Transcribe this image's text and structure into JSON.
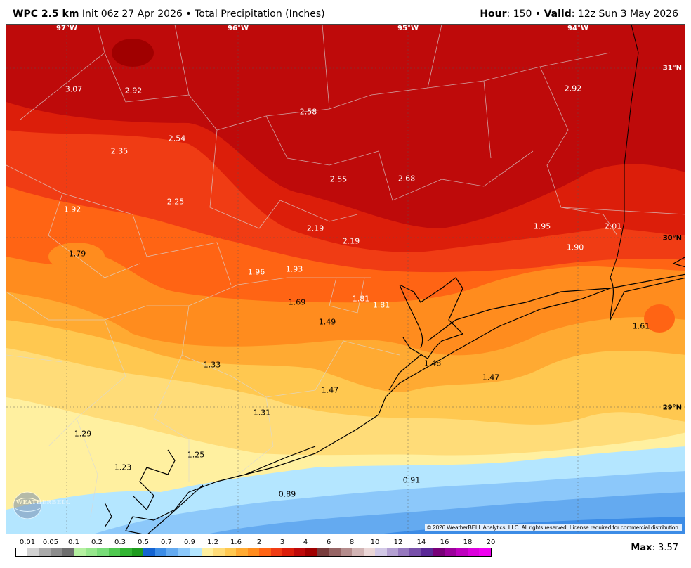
{
  "header": {
    "model": "WPC 2.5 km",
    "init": "Init 06z 27 Apr 2026",
    "sep": "•",
    "field": "Total Precipitation (Inches)",
    "hour_label": "Hour",
    "hour_value": ": 150",
    "valid_label": "Valid",
    "valid_value": ": 12z Sun 3 May 2026"
  },
  "map": {
    "longitudes": [
      "97°W",
      "96°W",
      "95°W",
      "94°W"
    ],
    "latitudes": [
      "31°N",
      "30°N",
      "29°N"
    ],
    "values": [
      {
        "text": "3.07",
        "tone": "light"
      },
      {
        "text": "2.92",
        "tone": "light"
      },
      {
        "text": "2.58",
        "tone": "light"
      },
      {
        "text": "2.92",
        "tone": "light"
      },
      {
        "text": "2.54",
        "tone": "light"
      },
      {
        "text": "2.35",
        "tone": "light"
      },
      {
        "text": "2.55",
        "tone": "light"
      },
      {
        "text": "2.68",
        "tone": "light"
      },
      {
        "text": "2.25",
        "tone": "light"
      },
      {
        "text": "1.92",
        "tone": "light"
      },
      {
        "text": "2.19",
        "tone": "light"
      },
      {
        "text": "2.19",
        "tone": "light"
      },
      {
        "text": "1.95",
        "tone": "light"
      },
      {
        "text": "2.01",
        "tone": "light"
      },
      {
        "text": "1.90",
        "tone": "light"
      },
      {
        "text": "1.79",
        "tone": "dark"
      },
      {
        "text": "1.96",
        "tone": "light"
      },
      {
        "text": "1.93",
        "tone": "light"
      },
      {
        "text": "1.81",
        "tone": "light"
      },
      {
        "text": "1.81",
        "tone": "light"
      },
      {
        "text": "1.69",
        "tone": "dark"
      },
      {
        "text": "1.49",
        "tone": "dark"
      },
      {
        "text": "1.61",
        "tone": "dark"
      },
      {
        "text": "1.33",
        "tone": "dark"
      },
      {
        "text": "1.48",
        "tone": "dark"
      },
      {
        "text": "1.47",
        "tone": "dark"
      },
      {
        "text": "1.47",
        "tone": "dark"
      },
      {
        "text": "1.31",
        "tone": "dark"
      },
      {
        "text": "1.29",
        "tone": "dark"
      },
      {
        "text": "1.25",
        "tone": "dark"
      },
      {
        "text": "1.23",
        "tone": "dark"
      },
      {
        "text": "0.91",
        "tone": "dark"
      },
      {
        "text": "0.89",
        "tone": "dark"
      }
    ],
    "copyright": "© 2026 WeatherBELL Analytics, LLC. All rights reserved. License required for commercial distribution.",
    "logo": "WEATHERBELL"
  },
  "colorbar": {
    "labels": [
      "0.01",
      "0.05",
      "0.1",
      "0.2",
      "0.3",
      "0.5",
      "0.7",
      "0.9",
      "1.2",
      "1.6",
      "2",
      "3",
      "4",
      "6",
      "8",
      "10",
      "12",
      "14",
      "16",
      "18",
      "20"
    ],
    "colors": [
      "#ffffff",
      "#d2d2d2",
      "#aaaaaa",
      "#8c8c8c",
      "#6e6e6e",
      "#b4f0a0",
      "#96e68c",
      "#78dc78",
      "#50c850",
      "#32b432",
      "#1e9b1e",
      "#1464d2",
      "#3c8ce6",
      "#64aaf0",
      "#8cc8fa",
      "#b4e6ff",
      "#fff0a0",
      "#ffdc78",
      "#ffc850",
      "#ffaa32",
      "#ff8c1e",
      "#ff6414",
      "#f03c14",
      "#dc1e0a",
      "#be0a0a",
      "#a00000",
      "#783c3c",
      "#966464",
      "#b48c8c",
      "#d2b4b4",
      "#ebd7d7",
      "#d2c8e6",
      "#b4a0d2",
      "#9678be",
      "#7850aa",
      "#5a2896",
      "#780078",
      "#9b009b",
      "#be00be",
      "#dc00dc",
      "#f000f0"
    ]
  },
  "max": {
    "label": "Max",
    "value": ": 3.57"
  }
}
